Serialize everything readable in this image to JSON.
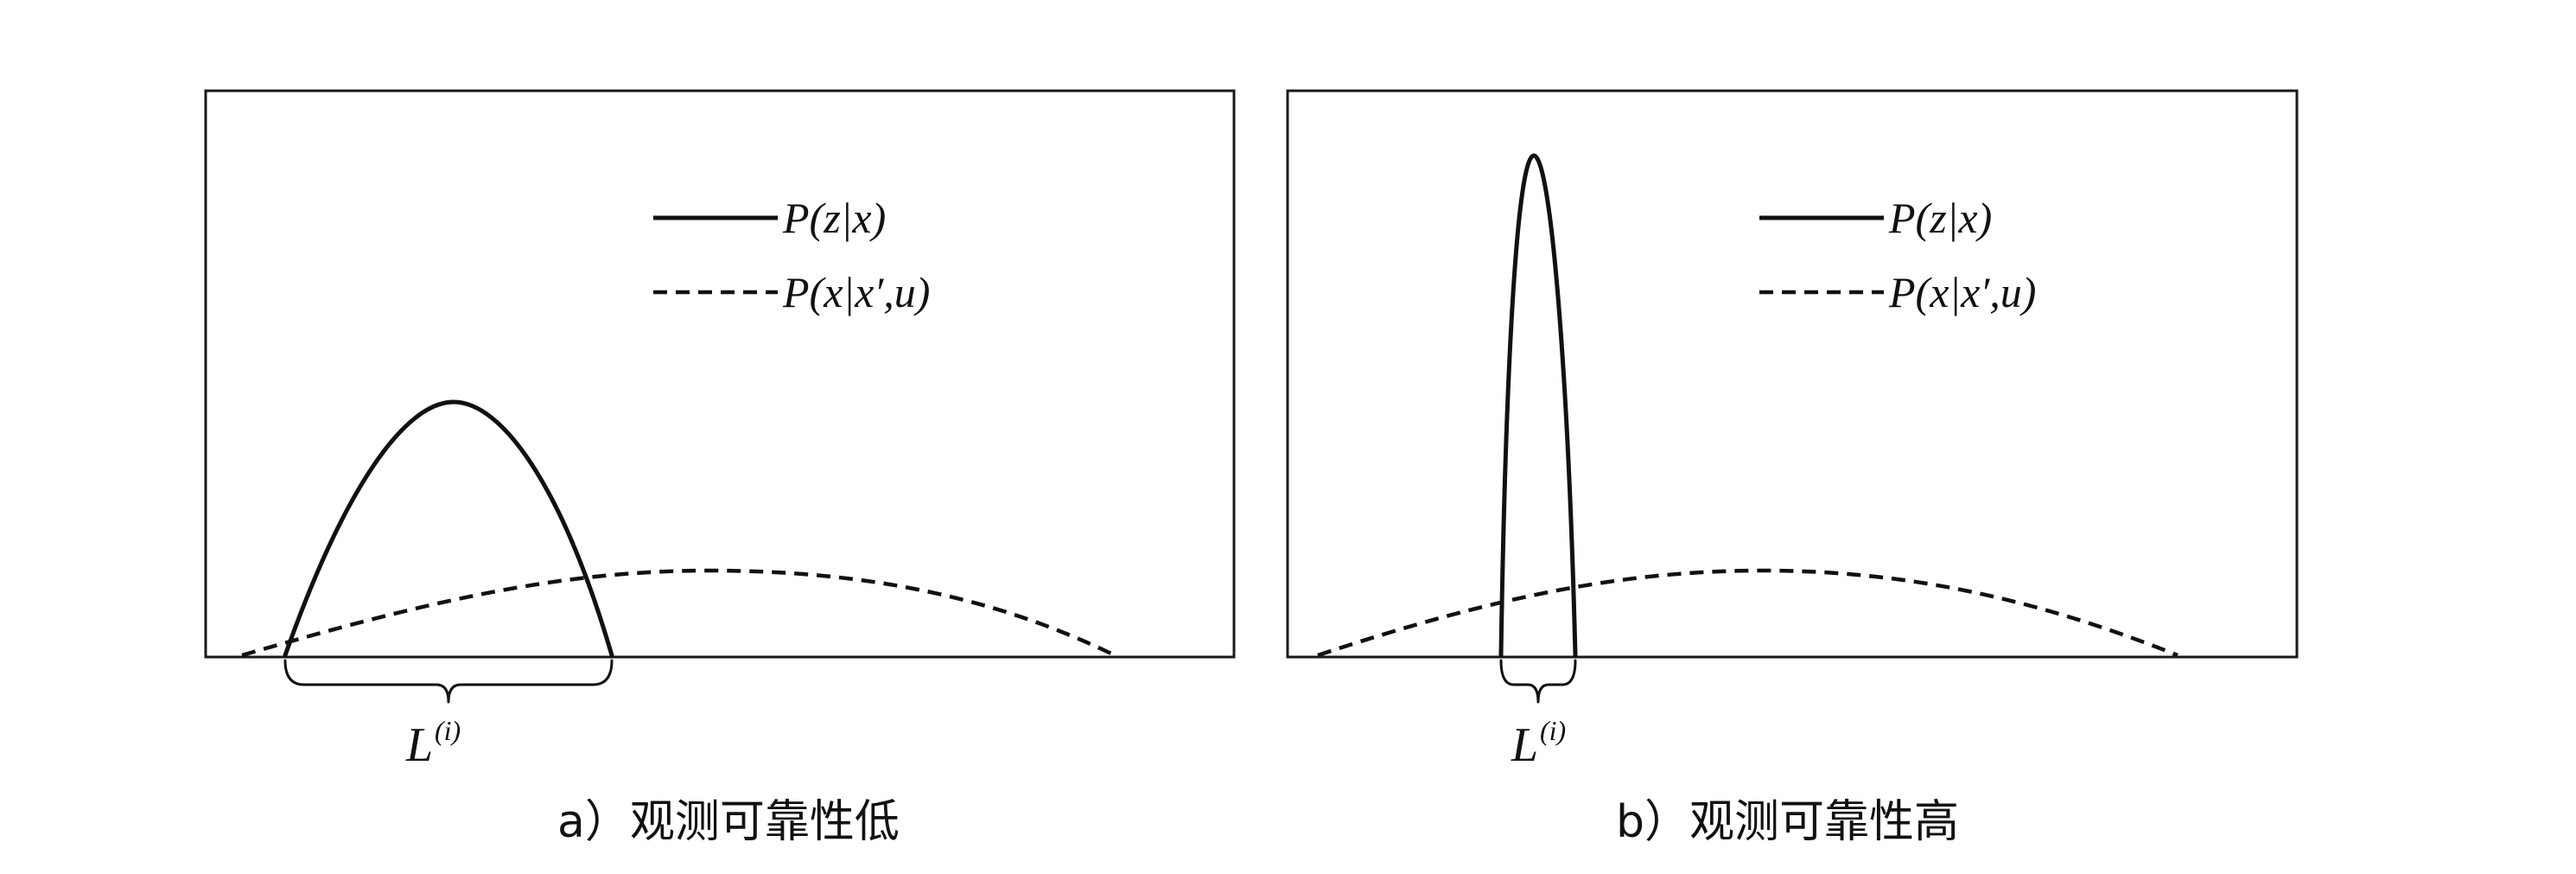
{
  "panels": [
    {
      "legend": {
        "solid": "P(z|x)",
        "dashed": "P(x|x′,u)"
      },
      "bracket_label": "L",
      "bracket_superscript": "(i)",
      "caption": "a）观测可靠性低"
    },
    {
      "legend": {
        "solid": "P(z|x)",
        "dashed": "P(x|x′,u)"
      },
      "bracket_label": "L",
      "bracket_superscript": "(i)",
      "caption": "b）观测可靠性高"
    }
  ]
}
